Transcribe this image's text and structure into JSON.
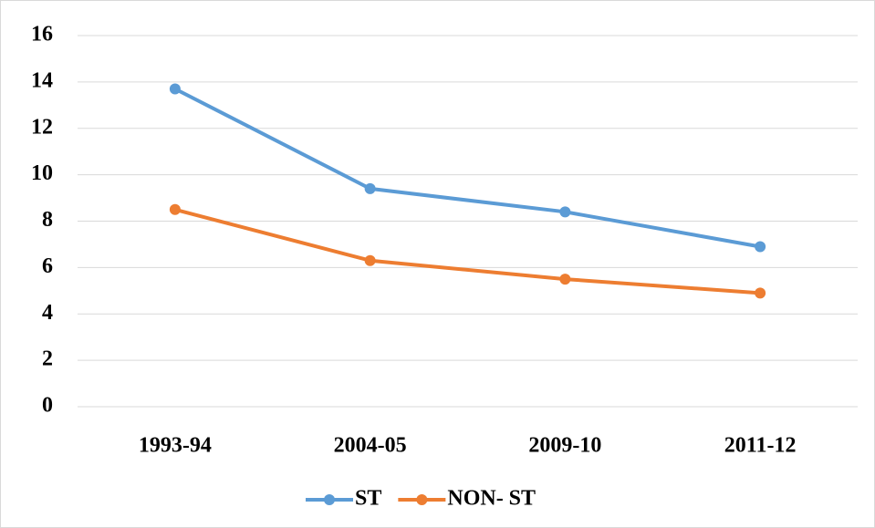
{
  "chart_data": {
    "type": "line",
    "categories": [
      "1993-94",
      "2004-05",
      "2009-10",
      "2011-12"
    ],
    "series": [
      {
        "name": "ST",
        "color": "#5b9bd5",
        "values": [
          13.7,
          9.4,
          8.4,
          6.9
        ]
      },
      {
        "name": "NON- ST",
        "color": "#ed7d31",
        "values": [
          8.5,
          6.3,
          5.5,
          4.9
        ]
      }
    ],
    "ylim": [
      0,
      16
    ],
    "yticks": [
      0,
      2,
      4,
      6,
      8,
      10,
      12,
      14,
      16
    ],
    "grid": true,
    "legend": "bottom"
  }
}
